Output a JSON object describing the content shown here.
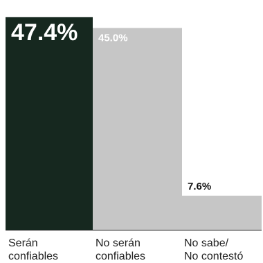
{
  "chart_data": {
    "type": "bar",
    "categories": [
      "Serán\nconfiables",
      "No serán\nconfiables",
      "No sabe/\nNo contestó"
    ],
    "values": [
      47.4,
      45.0,
      7.6
    ],
    "value_labels": [
      "47.4%",
      "45.0%",
      "7.6%"
    ],
    "ylim": [
      0,
      50
    ],
    "grid": false,
    "legend": "none"
  },
  "colors": {
    "bar_1": "#16281f",
    "bar_2": "#c6c6c6",
    "bar_3": "#c6c6c6",
    "label_on_dark": "#ffffff",
    "label_on_light": "#ffffff",
    "label_outside": "#111111",
    "baseline": "#1a1a1a"
  }
}
